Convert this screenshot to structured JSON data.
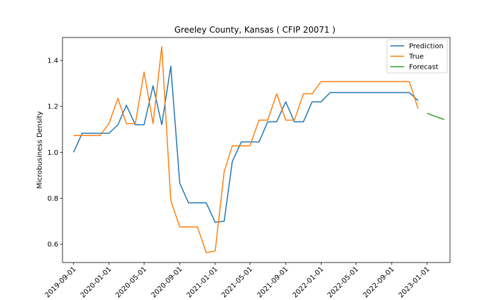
{
  "chart_data": {
    "type": "line",
    "title": "Greeley County, Kansas ( CFIP 20071 )",
    "xlabel": "",
    "ylabel": "Microbusiness Density",
    "ylim": [
      0.52,
      1.5
    ],
    "xlim": [
      "2019-07-25",
      "2023-03-21"
    ],
    "x_ticks": [
      "2019-09-01",
      "2020-01-01",
      "2020-05-01",
      "2020-09-01",
      "2021-01-01",
      "2021-05-01",
      "2021-09-01",
      "2022-01-01",
      "2022-05-01",
      "2022-09-01",
      "2023-01-01"
    ],
    "y_ticks": [
      0.6,
      0.8,
      1.0,
      1.2,
      1.4
    ],
    "y_tick_labels": [
      "0.6",
      "0.8",
      "1.0",
      "1.2",
      "1.4"
    ],
    "grid": false,
    "legend_position": "top-right",
    "series": [
      {
        "name": "Prediction",
        "color": "#1f77b4",
        "points": [
          [
            "2019-09-01",
            1.0
          ],
          [
            "2019-10-01",
            1.083
          ],
          [
            "2019-11-01",
            1.083
          ],
          [
            "2019-12-01",
            1.083
          ],
          [
            "2020-01-01",
            1.083
          ],
          [
            "2020-02-01",
            1.12
          ],
          [
            "2020-03-01",
            1.205
          ],
          [
            "2020-04-01",
            1.12
          ],
          [
            "2020-05-01",
            1.12
          ],
          [
            "2020-06-01",
            1.29
          ],
          [
            "2020-07-01",
            1.12
          ],
          [
            "2020-08-01",
            1.375
          ],
          [
            "2020-09-01",
            0.865
          ],
          [
            "2020-10-01",
            0.78
          ],
          [
            "2020-11-01",
            0.78
          ],
          [
            "2020-12-01",
            0.78
          ],
          [
            "2021-01-01",
            0.695
          ],
          [
            "2021-02-01",
            0.7
          ],
          [
            "2021-03-01",
            0.96
          ],
          [
            "2021-04-01",
            1.045
          ],
          [
            "2021-05-01",
            1.045
          ],
          [
            "2021-06-01",
            1.045
          ],
          [
            "2021-07-01",
            1.133
          ],
          [
            "2021-08-01",
            1.133
          ],
          [
            "2021-09-01",
            1.22
          ],
          [
            "2021-10-01",
            1.133
          ],
          [
            "2021-11-01",
            1.133
          ],
          [
            "2021-12-01",
            1.22
          ],
          [
            "2022-01-01",
            1.22
          ],
          [
            "2022-02-01",
            1.26
          ],
          [
            "2022-03-01",
            1.26
          ],
          [
            "2022-04-01",
            1.26
          ],
          [
            "2022-05-01",
            1.26
          ],
          [
            "2022-06-01",
            1.26
          ],
          [
            "2022-07-01",
            1.26
          ],
          [
            "2022-08-01",
            1.26
          ],
          [
            "2022-09-01",
            1.26
          ],
          [
            "2022-10-01",
            1.26
          ],
          [
            "2022-11-01",
            1.26
          ],
          [
            "2022-12-01",
            1.225
          ]
        ]
      },
      {
        "name": "True",
        "color": "#ff7f0e",
        "points": [
          [
            "2019-09-01",
            1.073
          ],
          [
            "2019-10-01",
            1.073
          ],
          [
            "2019-11-01",
            1.073
          ],
          [
            "2019-12-01",
            1.073
          ],
          [
            "2020-01-01",
            1.125
          ],
          [
            "2020-02-01",
            1.235
          ],
          [
            "2020-03-01",
            1.125
          ],
          [
            "2020-04-01",
            1.125
          ],
          [
            "2020-05-01",
            1.35
          ],
          [
            "2020-06-01",
            1.125
          ],
          [
            "2020-07-01",
            1.46
          ],
          [
            "2020-08-01",
            0.79
          ],
          [
            "2020-09-01",
            0.675
          ],
          [
            "2020-10-01",
            0.675
          ],
          [
            "2020-11-01",
            0.675
          ],
          [
            "2020-12-01",
            0.563
          ],
          [
            "2021-01-01",
            0.57
          ],
          [
            "2021-02-01",
            0.915
          ],
          [
            "2021-03-01",
            1.028
          ],
          [
            "2021-04-01",
            1.028
          ],
          [
            "2021-05-01",
            1.028
          ],
          [
            "2021-06-01",
            1.14
          ],
          [
            "2021-07-01",
            1.14
          ],
          [
            "2021-08-01",
            1.255
          ],
          [
            "2021-09-01",
            1.14
          ],
          [
            "2021-10-01",
            1.14
          ],
          [
            "2021-11-01",
            1.255
          ],
          [
            "2021-12-01",
            1.255
          ],
          [
            "2022-01-01",
            1.308
          ],
          [
            "2022-02-01",
            1.308
          ],
          [
            "2022-03-01",
            1.308
          ],
          [
            "2022-04-01",
            1.308
          ],
          [
            "2022-05-01",
            1.308
          ],
          [
            "2022-06-01",
            1.308
          ],
          [
            "2022-07-01",
            1.308
          ],
          [
            "2022-08-01",
            1.308
          ],
          [
            "2022-09-01",
            1.308
          ],
          [
            "2022-10-01",
            1.308
          ],
          [
            "2022-11-01",
            1.308
          ],
          [
            "2022-12-01",
            1.19
          ]
        ]
      },
      {
        "name": "Forecast",
        "color": "#2ca02c",
        "points": [
          [
            "2023-01-01",
            1.17
          ],
          [
            "2023-02-01",
            1.155
          ],
          [
            "2023-03-01",
            1.143
          ]
        ]
      }
    ]
  }
}
